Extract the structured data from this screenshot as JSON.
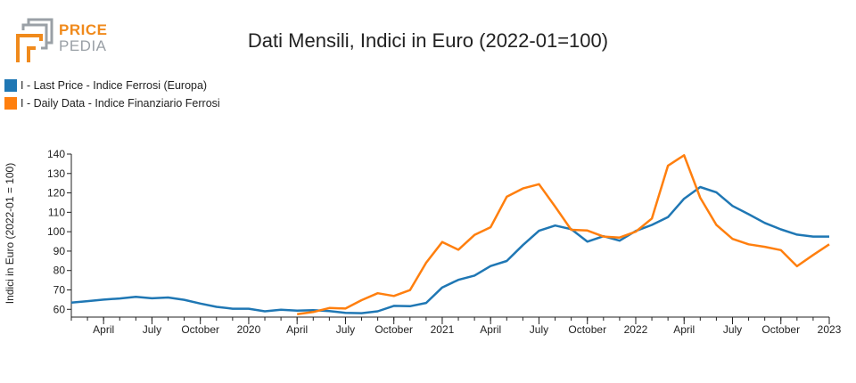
{
  "header": {
    "logo_line1": "PRICE",
    "logo_line2": "PEDIA",
    "title": "Dati Mensili, Indici in Euro (2022-01=100)"
  },
  "colors": {
    "series1": "#1f77b4",
    "series2": "#ff7f0e",
    "logo_orange": "#f08a1c",
    "logo_grey": "#9aa0a6"
  },
  "chart_data": {
    "type": "line",
    "title": "Dati Mensili, Indici in Euro (2022-01=100)",
    "ylabel": "Indici in Euro (2022-01 = 100)",
    "xlabel": "",
    "ylim": [
      56,
      140
    ],
    "xlim": [
      "2019-02",
      "2023-01"
    ],
    "yticks": [
      60,
      70,
      80,
      90,
      100,
      110,
      120,
      130,
      140
    ],
    "xticks": [
      {
        "date": "2019-04",
        "label": "April"
      },
      {
        "date": "2019-07",
        "label": "July"
      },
      {
        "date": "2019-10",
        "label": "October"
      },
      {
        "date": "2020-01",
        "label": "2020"
      },
      {
        "date": "2020-04",
        "label": "April"
      },
      {
        "date": "2020-07",
        "label": "July"
      },
      {
        "date": "2020-10",
        "label": "October"
      },
      {
        "date": "2021-01",
        "label": "2021"
      },
      {
        "date": "2021-04",
        "label": "April"
      },
      {
        "date": "2021-07",
        "label": "July"
      },
      {
        "date": "2021-10",
        "label": "October"
      },
      {
        "date": "2022-01",
        "label": "2022"
      },
      {
        "date": "2022-04",
        "label": "April"
      },
      {
        "date": "2022-07",
        "label": "July"
      },
      {
        "date": "2022-10",
        "label": "October"
      },
      {
        "date": "2023-01",
        "label": "2023"
      }
    ],
    "series": [
      {
        "name": "I - Last Price - Indice Ferrosi (Europa)",
        "color": "#1f77b4",
        "x": [
          "2019-02",
          "2019-03",
          "2019-04",
          "2019-05",
          "2019-06",
          "2019-07",
          "2019-08",
          "2019-09",
          "2019-10",
          "2019-11",
          "2019-12",
          "2020-01",
          "2020-02",
          "2020-03",
          "2020-04",
          "2020-05",
          "2020-06",
          "2020-07",
          "2020-08",
          "2020-09",
          "2020-10",
          "2020-11",
          "2020-12",
          "2021-01",
          "2021-02",
          "2021-03",
          "2021-04",
          "2021-05",
          "2021-06",
          "2021-07",
          "2021-08",
          "2021-09",
          "2021-10",
          "2021-11",
          "2021-12",
          "2022-01",
          "2022-02",
          "2022-03",
          "2022-04",
          "2022-05",
          "2022-06",
          "2022-07",
          "2022-08",
          "2022-09",
          "2022-10",
          "2022-11",
          "2022-12",
          "2023-01"
        ],
        "values": [
          63.5,
          64.2,
          65,
          65.6,
          66.4,
          65.7,
          66.1,
          64.9,
          63,
          61.3,
          60.3,
          60.3,
          59,
          59.8,
          59.3,
          59.6,
          59.1,
          58.2,
          58,
          59,
          61.8,
          61.6,
          63.3,
          71.3,
          75.2,
          77.4,
          82.3,
          84.9,
          93.1,
          100.5,
          103.2,
          101.3,
          94.9,
          97.7,
          95.4,
          100.4,
          103.5,
          107.5,
          117,
          123,
          120.3,
          113.3,
          109,
          104.5,
          101.2,
          98.5,
          97.5,
          97.5
        ]
      },
      {
        "name": "I - Daily Data - Indice Finanziario Ferrosi",
        "color": "#ff7f0e",
        "x": [
          "2020-04",
          "2020-05",
          "2020-06",
          "2020-07",
          "2020-08",
          "2020-09",
          "2020-10",
          "2020-11",
          "2020-12",
          "2021-01",
          "2021-02",
          "2021-03",
          "2021-04",
          "2021-05",
          "2021-06",
          "2021-07",
          "2021-08",
          "2021-09",
          "2021-10",
          "2021-11",
          "2021-12",
          "2022-01",
          "2022-02",
          "2022-03",
          "2022-04",
          "2022-05",
          "2022-06",
          "2022-07",
          "2022-08",
          "2022-09",
          "2022-10",
          "2022-11",
          "2022-12",
          "2023-01"
        ],
        "values": [
          57.5,
          58.6,
          60.7,
          60.4,
          64.7,
          68.3,
          66.9,
          69.9,
          84,
          94.7,
          90.7,
          98.3,
          102.3,
          118,
          122.3,
          124.5,
          112.9,
          101,
          100.6,
          97.5,
          97,
          100,
          106.8,
          134,
          139.4,
          117.5,
          103.5,
          96.3,
          93.5,
          92.2,
          90.5,
          82.2,
          88,
          93.5
        ]
      }
    ]
  }
}
